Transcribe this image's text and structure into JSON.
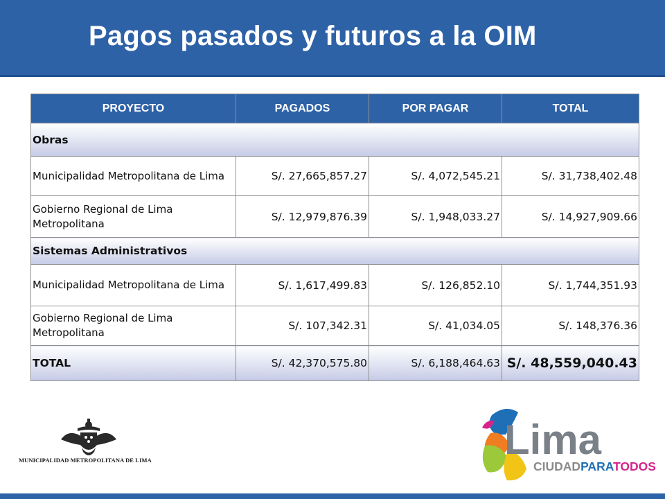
{
  "header": {
    "title": "Pagos pasados y futuros a la OIM"
  },
  "table": {
    "columns": [
      "PROYECTO",
      "PAGADOS",
      "POR PAGAR",
      "TOTAL"
    ],
    "sections": [
      {
        "name": "Obras",
        "rows": [
          {
            "proyecto": "Municipalidad Metropolitana de Lima",
            "pagados": "S/. 27,665,857.27",
            "por_pagar": "S/. 4,072,545.21",
            "total": "S/. 31,738,402.48"
          },
          {
            "proyecto": "Gobierno Regional de Lima Metropolitana",
            "pagados": "S/. 12,979,876.39",
            "por_pagar": "S/. 1,948,033.27",
            "total": "S/. 14,927,909.66"
          }
        ]
      },
      {
        "name": "Sistemas Administrativos",
        "rows": [
          {
            "proyecto": "Municipalidad Metropolitana de Lima",
            "pagados": "S/. 1,617,499.83",
            "por_pagar": "S/. 126,852.10",
            "total": "S/. 1,744,351.93"
          },
          {
            "proyecto": "Gobierno Regional de Lima Metropolitana",
            "pagados": "S/. 107,342.31",
            "por_pagar": "S/. 41,034.05",
            "total": "S/. 148,376.36"
          }
        ]
      }
    ],
    "total_row": {
      "label": "TOTAL",
      "pagados": "S/. 42,370,575.80",
      "por_pagar": "S/. 6,188,464.63",
      "total": "S/. 48,559,040.43"
    }
  },
  "logos": {
    "municipalidad": {
      "icon": "coat-of-arms-icon",
      "text": "MUNICIPALIDAD METROPOLITANA DE LIMA"
    },
    "lima": {
      "word": "Lima",
      "tagline_parts": [
        "CIUDAD",
        "PARA",
        "TODOS"
      ]
    }
  },
  "colors": {
    "header_blue": "#2e62a7",
    "row_tint": "#c5cbe6",
    "lima_blue": "#1f6fb7",
    "lima_green": "#9cc93a",
    "lima_yellow": "#f2c416",
    "lima_orange": "#f07d21",
    "lima_pink": "#d6248b",
    "lima_purple": "#7a3fa0",
    "lima_tagline_gray": "#8a8a8a"
  }
}
